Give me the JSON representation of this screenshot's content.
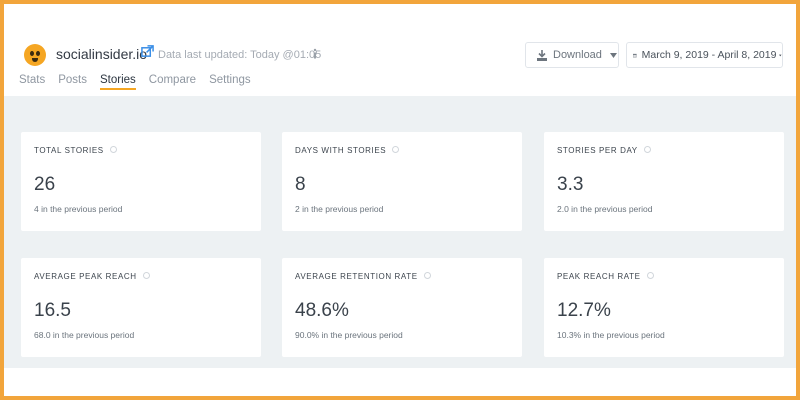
{
  "header": {
    "brand": "socialinsider.io",
    "updated_text": "Data last updated: Today @01:05"
  },
  "tabs": [
    {
      "label": "Stats",
      "active": false
    },
    {
      "label": "Posts",
      "active": false
    },
    {
      "label": "Stories",
      "active": true
    },
    {
      "label": "Compare",
      "active": false
    },
    {
      "label": "Settings",
      "active": false
    }
  ],
  "toolbar": {
    "download_label": "Download",
    "date_range": "March 9, 2019 - April 8, 2019"
  },
  "cards": [
    {
      "title": "TOTAL STORIES",
      "value": "26",
      "prev": "4 in the previous period"
    },
    {
      "title": "DAYS WITH STORIES",
      "value": "8",
      "prev": "2 in the previous period"
    },
    {
      "title": "STORIES PER DAY",
      "value": "3.3",
      "prev": "2.0 in the previous period"
    },
    {
      "title": "AVERAGE PEAK REACH",
      "value": "16.5",
      "prev": "68.0 in the previous period"
    },
    {
      "title": "AVERAGE RETENTION RATE",
      "value": "48.6%",
      "prev": "90.0% in the previous period"
    },
    {
      "title": "PEAK REACH RATE",
      "value": "12.7%",
      "prev": "10.3% in the previous period"
    }
  ],
  "colors": {
    "accent": "#f5a623",
    "frame": "#f2a53b",
    "link": "#3a8ee6",
    "content_bg": "#edf1f3"
  }
}
